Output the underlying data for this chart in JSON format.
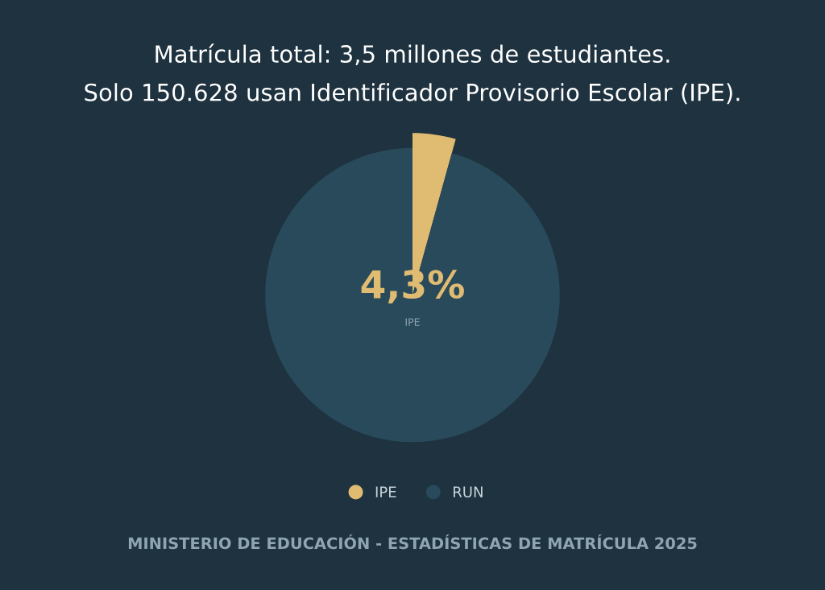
{
  "chart_data": {
    "type": "pie",
    "title": "Matrícula total: 3,5 millones de estudiantes.",
    "subtitle": "Solo 150.628 usan Identificador Provisorio Escolar (IPE).",
    "categories": [
      "IPE",
      "RUN"
    ],
    "values": [
      4.3,
      95.7
    ],
    "colors": [
      "#e0bb72",
      "#284a5a"
    ],
    "annotations": [
      "4,3%",
      "IPE",
      "MINISTERIO DE EDUCACIÓN - ESTADÍSTICAS DE MATRÍCULA 2025"
    ],
    "legend": "bottom"
  }
}
